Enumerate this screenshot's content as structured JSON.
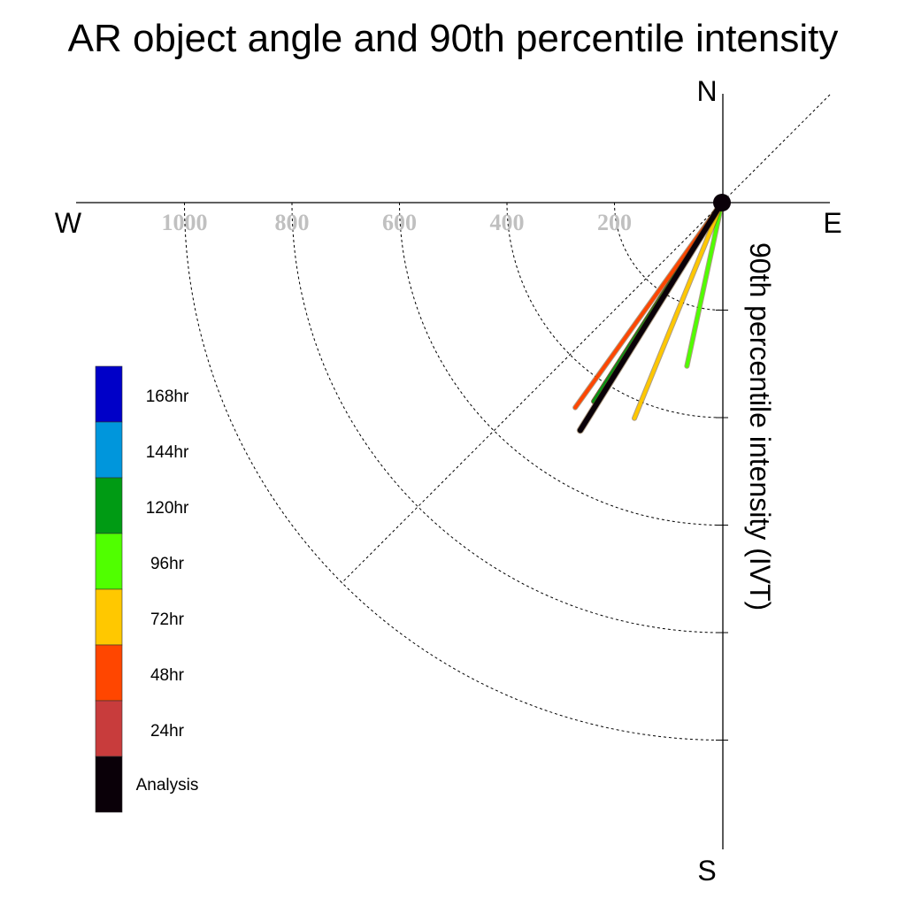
{
  "chart_data": {
    "type": "polar-quadrant",
    "title": "AR object angle and 90th percentile intensity",
    "radial_label": "90th percentile intensity (IVT)",
    "compass": {
      "north": "N",
      "south": "S",
      "east": "E",
      "west": "W"
    },
    "radial_ticks": [
      "1000",
      "800",
      "600",
      "400",
      "200"
    ],
    "radial_tick_values": [
      1000,
      800,
      600,
      400,
      200
    ],
    "radial_max": 1200,
    "angle_reference": "degrees clockwise from South toward West",
    "series": [
      {
        "name": "168hr",
        "color": "#0000c8",
        "angle_deg": 32.8,
        "intensity": 440
      },
      {
        "name": "144hr",
        "color": "#0096dc",
        "angle_deg": 32.8,
        "intensity": 440
      },
      {
        "name": "120hr",
        "color": "#009b14",
        "angle_deg": 32.8,
        "intensity": 440
      },
      {
        "name": "96hr",
        "color": "#50ff00",
        "angle_deg": 12.1,
        "intensity": 311
      },
      {
        "name": "72hr",
        "color": "#ffc800",
        "angle_deg": 22.1,
        "intensity": 433
      },
      {
        "name": "48hr",
        "color": "#ff4600",
        "angle_deg": 35.6,
        "intensity": 469
      },
      {
        "name": "24hr",
        "color": "#c83c3c",
        "angle_deg": 31.9,
        "intensity": 491
      },
      {
        "name": "Analysis",
        "color": "#0a0008",
        "angle_deg": 31.9,
        "intensity": 499
      }
    ],
    "legend": [
      {
        "label": "168hr",
        "color": "#0000c8"
      },
      {
        "label": "144hr",
        "color": "#0096dc"
      },
      {
        "label": "120hr",
        "color": "#009b14"
      },
      {
        "label": "96hr",
        "color": "#50ff00"
      },
      {
        "label": "72hr",
        "color": "#ffc800"
      },
      {
        "label": "48hr",
        "color": "#ff4600"
      },
      {
        "label": "24hr",
        "color": "#c83c3c"
      },
      {
        "label": "Analysis",
        "color": "#0a0008"
      }
    ]
  }
}
